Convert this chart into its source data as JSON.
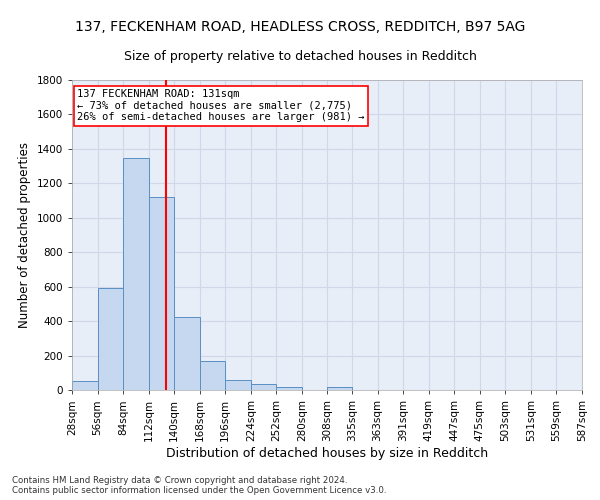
{
  "title1": "137, FECKENHAM ROAD, HEADLESS CROSS, REDDITCH, B97 5AG",
  "title2": "Size of property relative to detached houses in Redditch",
  "xlabel": "Distribution of detached houses by size in Redditch",
  "ylabel": "Number of detached properties",
  "footnote": "Contains HM Land Registry data © Crown copyright and database right 2024.\nContains public sector information licensed under the Open Government Licence v3.0.",
  "bin_edges": [
    28,
    56,
    84,
    112,
    140,
    168,
    196,
    224,
    252,
    280,
    308,
    335,
    363,
    391,
    419,
    447,
    475,
    503,
    531,
    559,
    587
  ],
  "bar_heights": [
    50,
    590,
    1350,
    1120,
    425,
    170,
    60,
    35,
    15,
    0,
    20,
    0,
    0,
    0,
    0,
    0,
    0,
    0,
    0,
    0
  ],
  "bar_color": "#c5d8f0",
  "bar_edge_color": "#5a8fc3",
  "vline_x": 131,
  "vline_color": "red",
  "annotation_line1": "137 FECKENHAM ROAD: 131sqm",
  "annotation_line2": "← 73% of detached houses are smaller (2,775)",
  "annotation_line3": "26% of semi-detached houses are larger (981) →",
  "annotation_box_color": "red",
  "annotation_fill": "white",
  "ylim": [
    0,
    1800
  ],
  "yticks": [
    0,
    200,
    400,
    600,
    800,
    1000,
    1200,
    1400,
    1600,
    1800
  ],
  "bg_color": "#e8eef8",
  "grid_color": "#d0d8e8",
  "title1_fontsize": 10,
  "title2_fontsize": 9,
  "xlabel_fontsize": 9,
  "ylabel_fontsize": 8.5,
  "tick_fontsize": 7.5,
  "annot_fontsize": 7.5
}
